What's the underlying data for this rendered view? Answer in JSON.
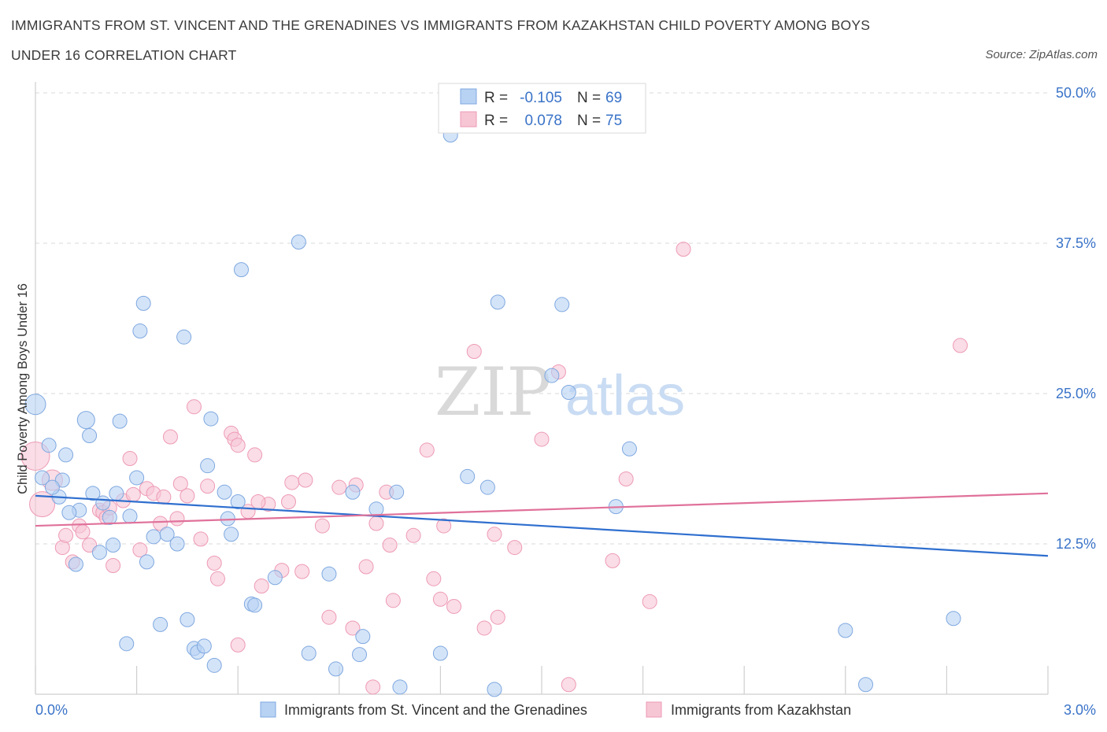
{
  "header": {
    "title_line1": "IMMIGRANTS FROM ST. VINCENT AND THE GRENADINES VS IMMIGRANTS FROM KAZAKHSTAN CHILD POVERTY AMONG BOYS",
    "title_line2": "UNDER 16 CORRELATION CHART",
    "source": "Source: ZipAtlas.com"
  },
  "colors": {
    "blue_fill": "#b8d2f3",
    "blue_stroke": "#7fa8e0",
    "blue_line": "#2f6fcf",
    "pink_fill": "#f7c6d5",
    "pink_stroke": "#ee9ab5",
    "pink_line": "#e0719a",
    "axis_text": "#3a73c8",
    "grid": "#d8d8d8"
  },
  "legend": {
    "rows": [
      {
        "r_label": "R =",
        "r_value": "-0.105",
        "n_label": "N =",
        "n_value": "69"
      },
      {
        "r_label": "R =",
        "r_value": "0.078",
        "n_label": "N =",
        "n_value": "75"
      }
    ]
  },
  "watermark": {
    "zip": "ZIP",
    "atlas": "atlas"
  },
  "chart_data": {
    "type": "scatter",
    "ylabel": "Child Poverty Among Boys Under 16",
    "xlim": [
      0,
      3.0
    ],
    "ylim": [
      0,
      50.0
    ],
    "x_tick_labels": [
      "0.0%",
      "3.0%"
    ],
    "y_tick_labels": [
      "12.5%",
      "25.0%",
      "37.5%",
      "50.0%"
    ],
    "y_ticks": [
      12.5,
      25.0,
      37.5,
      50.0
    ],
    "x_minor_ticks": [
      0,
      0.3,
      0.6,
      0.9,
      1.2,
      1.5,
      1.8,
      2.1,
      2.4,
      2.7,
      3.0
    ],
    "grid": true,
    "series": [
      {
        "name": "Immigrants from St. Vincent and the Grenadines",
        "color": "#b8d2f3",
        "trend": {
          "x": [
            0,
            3.0
          ],
          "y": [
            16.5,
            11.5
          ]
        },
        "points": [
          [
            0.0,
            24.1,
            13
          ],
          [
            0.02,
            18.0,
            9
          ],
          [
            0.04,
            20.7,
            9
          ],
          [
            0.07,
            16.4,
            9
          ],
          [
            0.08,
            17.8,
            9
          ],
          [
            0.09,
            19.9,
            9
          ],
          [
            0.12,
            10.8,
            9
          ],
          [
            0.13,
            15.3,
            9
          ],
          [
            0.15,
            22.8,
            11
          ],
          [
            0.16,
            21.5,
            9
          ],
          [
            0.17,
            16.7,
            9
          ],
          [
            0.19,
            11.8,
            9
          ],
          [
            0.2,
            15.9,
            9
          ],
          [
            0.22,
            14.7,
            9
          ],
          [
            0.23,
            12.4,
            9
          ],
          [
            0.24,
            16.7,
            9
          ],
          [
            0.25,
            22.7,
            9
          ],
          [
            0.27,
            4.2,
            9
          ],
          [
            0.28,
            14.8,
            9
          ],
          [
            0.3,
            18.0,
            9
          ],
          [
            0.31,
            30.2,
            9
          ],
          [
            0.32,
            32.5,
            9
          ],
          [
            0.33,
            11.0,
            9
          ],
          [
            0.35,
            13.1,
            9
          ],
          [
            0.37,
            5.8,
            9
          ],
          [
            0.39,
            13.3,
            9
          ],
          [
            0.42,
            12.5,
            9
          ],
          [
            0.44,
            29.7,
            9
          ],
          [
            0.45,
            6.2,
            9
          ],
          [
            0.47,
            3.8,
            9
          ],
          [
            0.48,
            3.5,
            9
          ],
          [
            0.5,
            4.0,
            9
          ],
          [
            0.51,
            19.0,
            9
          ],
          [
            0.52,
            22.9,
            9
          ],
          [
            0.53,
            2.4,
            9
          ],
          [
            0.56,
            16.8,
            9
          ],
          [
            0.57,
            14.6,
            9
          ],
          [
            0.58,
            13.3,
            9
          ],
          [
            0.6,
            16.0,
            9
          ],
          [
            0.61,
            35.3,
            9
          ],
          [
            0.64,
            7.5,
            9
          ],
          [
            0.65,
            7.4,
            9
          ],
          [
            0.71,
            9.7,
            9
          ],
          [
            0.78,
            37.6,
            9
          ],
          [
            0.81,
            3.4,
            9
          ],
          [
            0.87,
            10.0,
            9
          ],
          [
            0.89,
            2.1,
            9
          ],
          [
            0.94,
            16.8,
            9
          ],
          [
            0.96,
            3.3,
            9
          ],
          [
            0.97,
            4.8,
            9
          ],
          [
            1.01,
            15.4,
            9
          ],
          [
            1.07,
            16.8,
            9
          ],
          [
            1.08,
            0.6,
            9
          ],
          [
            1.2,
            3.4,
            9
          ],
          [
            1.23,
            46.5,
            9
          ],
          [
            1.28,
            18.1,
            9
          ],
          [
            1.34,
            17.2,
            9
          ],
          [
            1.36,
            0.4,
            9
          ],
          [
            1.37,
            32.6,
            9
          ],
          [
            1.53,
            26.5,
            9
          ],
          [
            1.56,
            32.4,
            9
          ],
          [
            1.58,
            25.1,
            9
          ],
          [
            1.72,
            15.6,
            9
          ],
          [
            1.76,
            20.4,
            9
          ],
          [
            2.4,
            5.3,
            9
          ],
          [
            2.46,
            0.8,
            9
          ],
          [
            2.72,
            6.3,
            9
          ],
          [
            0.05,
            17.2,
            9
          ],
          [
            0.1,
            15.1,
            9
          ]
        ]
      },
      {
        "name": "Immigrants from Kazakhstan",
        "color": "#f7c6d5",
        "trend": {
          "x": [
            0,
            3.0
          ],
          "y": [
            14.0,
            16.7
          ]
        },
        "points": [
          [
            0.0,
            19.8,
            18
          ],
          [
            0.02,
            15.8,
            16
          ],
          [
            0.05,
            17.8,
            13
          ],
          [
            0.08,
            12.2,
            9
          ],
          [
            0.09,
            13.2,
            9
          ],
          [
            0.11,
            11.0,
            9
          ],
          [
            0.13,
            14.0,
            9
          ],
          [
            0.14,
            13.5,
            9
          ],
          [
            0.16,
            12.4,
            9
          ],
          [
            0.19,
            15.3,
            9
          ],
          [
            0.2,
            15.1,
            9
          ],
          [
            0.21,
            14.7,
            9
          ],
          [
            0.23,
            10.7,
            9
          ],
          [
            0.26,
            16.1,
            9
          ],
          [
            0.28,
            19.6,
            9
          ],
          [
            0.29,
            16.6,
            9
          ],
          [
            0.31,
            12.0,
            9
          ],
          [
            0.33,
            17.1,
            9
          ],
          [
            0.35,
            16.7,
            9
          ],
          [
            0.37,
            14.2,
            9
          ],
          [
            0.38,
            16.4,
            9
          ],
          [
            0.4,
            21.4,
            9
          ],
          [
            0.42,
            14.6,
            9
          ],
          [
            0.43,
            17.5,
            9
          ],
          [
            0.45,
            16.5,
            9
          ],
          [
            0.47,
            23.9,
            9
          ],
          [
            0.49,
            12.9,
            9
          ],
          [
            0.51,
            17.3,
            9
          ],
          [
            0.53,
            10.9,
            9
          ],
          [
            0.54,
            9.6,
            9
          ],
          [
            0.58,
            21.7,
            9
          ],
          [
            0.59,
            21.2,
            9
          ],
          [
            0.6,
            20.7,
            9
          ],
          [
            0.63,
            15.2,
            9
          ],
          [
            0.65,
            19.9,
            9
          ],
          [
            0.67,
            9.0,
            9
          ],
          [
            0.69,
            15.8,
            9
          ],
          [
            0.73,
            10.3,
            9
          ],
          [
            0.75,
            16.0,
            9
          ],
          [
            0.76,
            17.6,
            9
          ],
          [
            0.79,
            10.2,
            9
          ],
          [
            0.8,
            17.8,
            9
          ],
          [
            0.85,
            14.0,
            9
          ],
          [
            0.87,
            6.4,
            9
          ],
          [
            0.9,
            17.2,
            9
          ],
          [
            0.94,
            5.5,
            9
          ],
          [
            0.95,
            17.4,
            9
          ],
          [
            0.98,
            10.6,
            9
          ],
          [
            1.0,
            0.6,
            9
          ],
          [
            1.01,
            14.2,
            9
          ],
          [
            1.04,
            16.8,
            9
          ],
          [
            1.05,
            12.4,
            9
          ],
          [
            1.06,
            7.8,
            9
          ],
          [
            1.12,
            13.2,
            9
          ],
          [
            1.16,
            20.3,
            9
          ],
          [
            1.18,
            9.6,
            9
          ],
          [
            1.2,
            7.9,
            9
          ],
          [
            1.21,
            14.0,
            9
          ],
          [
            1.24,
            7.3,
            9
          ],
          [
            1.3,
            28.5,
            9
          ],
          [
            1.33,
            5.5,
            9
          ],
          [
            1.36,
            13.3,
            9
          ],
          [
            1.37,
            6.4,
            9
          ],
          [
            1.42,
            12.2,
            9
          ],
          [
            1.5,
            21.2,
            9
          ],
          [
            1.55,
            26.8,
            9
          ],
          [
            1.58,
            0.8,
            9
          ],
          [
            1.71,
            11.1,
            9
          ],
          [
            1.75,
            17.9,
            9
          ],
          [
            1.82,
            7.7,
            9
          ],
          [
            1.92,
            37.0,
            9
          ],
          [
            2.74,
            29.0,
            9
          ],
          [
            0.6,
            4.1,
            9
          ],
          [
            0.22,
            15.5,
            9
          ],
          [
            0.66,
            16.0,
            9
          ]
        ]
      }
    ]
  }
}
